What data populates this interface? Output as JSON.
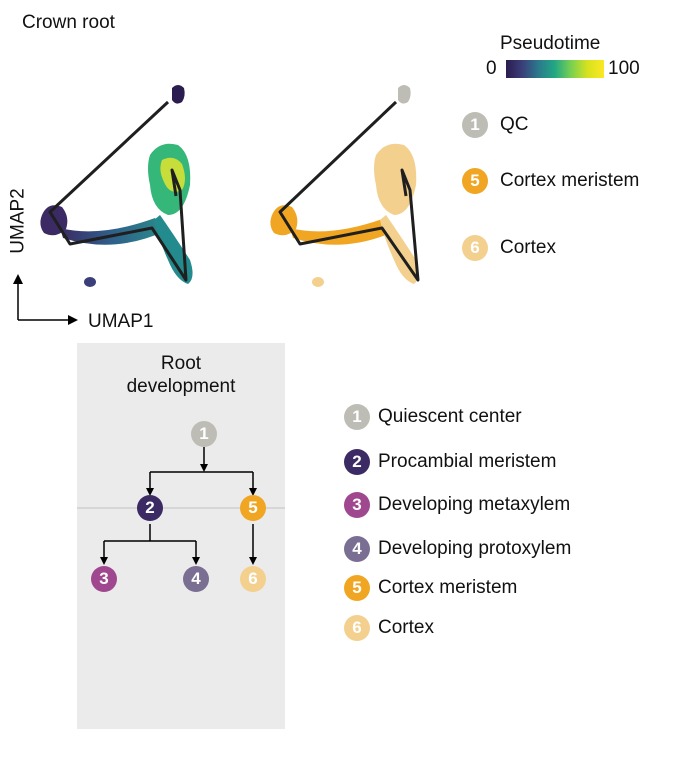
{
  "title": "Crown root",
  "pseudotime": {
    "label": "Pseudotime",
    "min": "0",
    "max": "100"
  },
  "axes": {
    "x": "UMAP1",
    "y": "UMAP2"
  },
  "umap_legend": [
    {
      "num": "1",
      "label": "QC",
      "color": "#bdbdb6"
    },
    {
      "num": "5",
      "label": "Cortex meristem",
      "color": "#f0a623"
    },
    {
      "num": "6",
      "label": "Cortex",
      "color": "#f3d08e"
    }
  ],
  "development": {
    "title_line1": "Root",
    "title_line2": "development",
    "nodes": [
      {
        "num": "1",
        "color": "#bdbdb6"
      },
      {
        "num": "2",
        "color": "#3b2a63"
      },
      {
        "num": "5",
        "color": "#f0a623"
      },
      {
        "num": "3",
        "color": "#a0488f"
      },
      {
        "num": "4",
        "color": "#7a6e93"
      },
      {
        "num": "6",
        "color": "#f3d08e"
      }
    ]
  },
  "cell_legend": [
    {
      "num": "1",
      "label": "Quiescent center",
      "color": "#bdbdb6"
    },
    {
      "num": "2",
      "label": "Procambial meristem",
      "color": "#3b2a63"
    },
    {
      "num": "3",
      "label": "Developing metaxylem",
      "color": "#a0488f"
    },
    {
      "num": "4",
      "label": "Developing protoxylem",
      "color": "#7a6e93"
    },
    {
      "num": "5",
      "label": "Cortex meristem",
      "color": "#f0a623"
    },
    {
      "num": "6",
      "label": "Cortex",
      "color": "#f3d08e"
    }
  ]
}
